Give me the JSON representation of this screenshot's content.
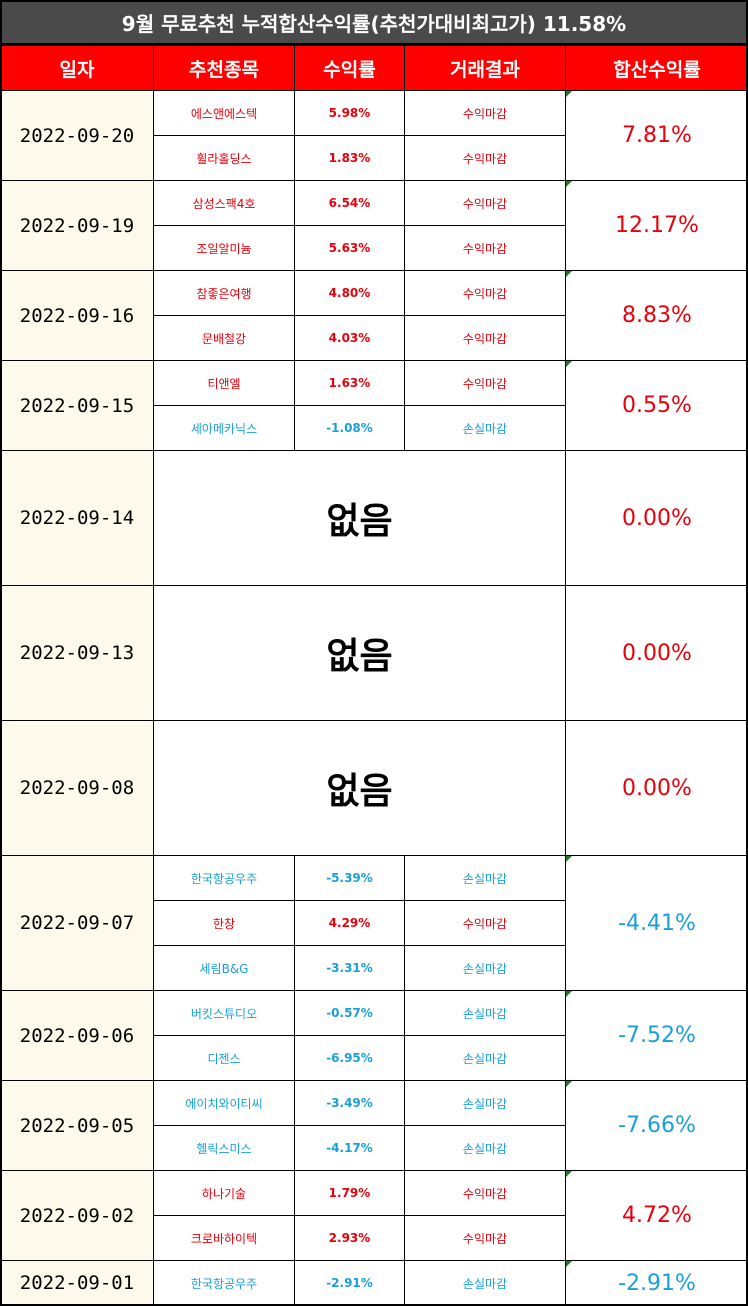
{
  "title": "9월 무료추천 누적합산수익률(추천가대비최고가) 11.58%",
  "headers": [
    "일자",
    "추천종목",
    "수익률",
    "거래결과",
    "합산수익률"
  ],
  "none_label": "없음",
  "colors": {
    "positive": "#e8000b",
    "negative": "#1aa0d8",
    "header_bg": "#ff0000",
    "title_bg": "#4a4a4a",
    "date_bg": "#fdfaec"
  },
  "days": [
    {
      "date": "2022-09-20",
      "sum": "7.81%",
      "sum_sign": "pos",
      "rows": [
        {
          "stock": "에스앤에스텍",
          "ret": "5.98%",
          "result": "수익마감",
          "sign": "pos"
        },
        {
          "stock": "휠라홀딩스",
          "ret": "1.83%",
          "result": "수익마감",
          "sign": "pos"
        }
      ]
    },
    {
      "date": "2022-09-19",
      "sum": "12.17%",
      "sum_sign": "pos",
      "rows": [
        {
          "stock": "삼성스팩4호",
          "ret": "6.54%",
          "result": "수익마감",
          "sign": "pos"
        },
        {
          "stock": "조일알미늄",
          "ret": "5.63%",
          "result": "수익마감",
          "sign": "pos"
        }
      ]
    },
    {
      "date": "2022-09-16",
      "sum": "8.83%",
      "sum_sign": "pos",
      "rows": [
        {
          "stock": "참좋은여행",
          "ret": "4.80%",
          "result": "수익마감",
          "sign": "pos"
        },
        {
          "stock": "문배철강",
          "ret": "4.03%",
          "result": "수익마감",
          "sign": "pos"
        }
      ]
    },
    {
      "date": "2022-09-15",
      "sum": "0.55%",
      "sum_sign": "pos",
      "rows": [
        {
          "stock": "티앤엘",
          "ret": "1.63%",
          "result": "수익마감",
          "sign": "pos"
        },
        {
          "stock": "세아메카닉스",
          "ret": "-1.08%",
          "result": "손실마감",
          "sign": "neg"
        }
      ]
    },
    {
      "date": "2022-09-14",
      "sum": "0.00%",
      "sum_sign": "pos",
      "rows": []
    },
    {
      "date": "2022-09-13",
      "sum": "0.00%",
      "sum_sign": "pos",
      "rows": []
    },
    {
      "date": "2022-09-08",
      "sum": "0.00%",
      "sum_sign": "pos",
      "rows": []
    },
    {
      "date": "2022-09-07",
      "sum": "-4.41%",
      "sum_sign": "neg",
      "rows": [
        {
          "stock": "한국항공우주",
          "ret": "-5.39%",
          "result": "손실마감",
          "sign": "neg"
        },
        {
          "stock": "한창",
          "ret": "4.29%",
          "result": "수익마감",
          "sign": "pos"
        },
        {
          "stock": "세림B&G",
          "ret": "-3.31%",
          "result": "손실마감",
          "sign": "neg"
        }
      ]
    },
    {
      "date": "2022-09-06",
      "sum": "-7.52%",
      "sum_sign": "neg",
      "rows": [
        {
          "stock": "버킷스튜디오",
          "ret": "-0.57%",
          "result": "손실마감",
          "sign": "neg"
        },
        {
          "stock": "디젠스",
          "ret": "-6.95%",
          "result": "손실마감",
          "sign": "neg"
        }
      ]
    },
    {
      "date": "2022-09-05",
      "sum": "-7.66%",
      "sum_sign": "neg",
      "rows": [
        {
          "stock": "에이치와이티씨",
          "ret": "-3.49%",
          "result": "손실마감",
          "sign": "neg"
        },
        {
          "stock": "헬릭스미스",
          "ret": "-4.17%",
          "result": "손실마감",
          "sign": "neg"
        }
      ]
    },
    {
      "date": "2022-09-02",
      "sum": "4.72%",
      "sum_sign": "pos",
      "rows": [
        {
          "stock": "하나기술",
          "ret": "1.79%",
          "result": "수익마감",
          "sign": "pos"
        },
        {
          "stock": "크로바하이텍",
          "ret": "2.93%",
          "result": "수익마감",
          "sign": "pos"
        }
      ]
    },
    {
      "date": "2022-09-01",
      "sum": "-2.91%",
      "sum_sign": "neg",
      "rows": [
        {
          "stock": "한국항공우주",
          "ret": "-2.91%",
          "result": "손실마감",
          "sign": "neg"
        }
      ]
    }
  ]
}
